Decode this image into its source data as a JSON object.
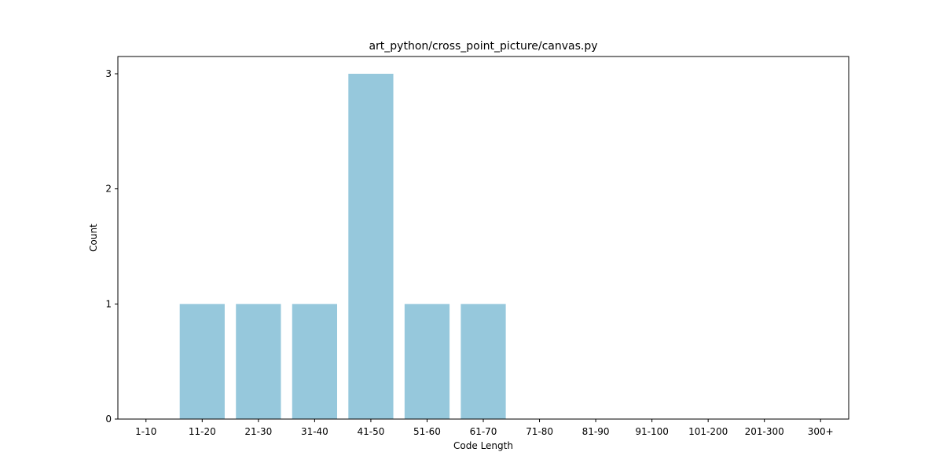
{
  "chart_data": {
    "type": "bar",
    "title": "art_python/cross_point_picture/canvas.py",
    "xlabel": "Code Length",
    "ylabel": "Count",
    "categories": [
      "1-10",
      "11-20",
      "21-30",
      "31-40",
      "41-50",
      "51-60",
      "61-70",
      "71-80",
      "81-90",
      "91-100",
      "101-200",
      "201-300",
      "300+"
    ],
    "values": [
      0,
      1,
      1,
      1,
      3,
      1,
      1,
      0,
      0,
      0,
      0,
      0,
      0
    ],
    "ylim": [
      0,
      3.15
    ],
    "yticks": [
      0,
      1,
      2,
      3
    ],
    "grid": false,
    "legend": "none",
    "bar_color": "#96c8dc"
  }
}
